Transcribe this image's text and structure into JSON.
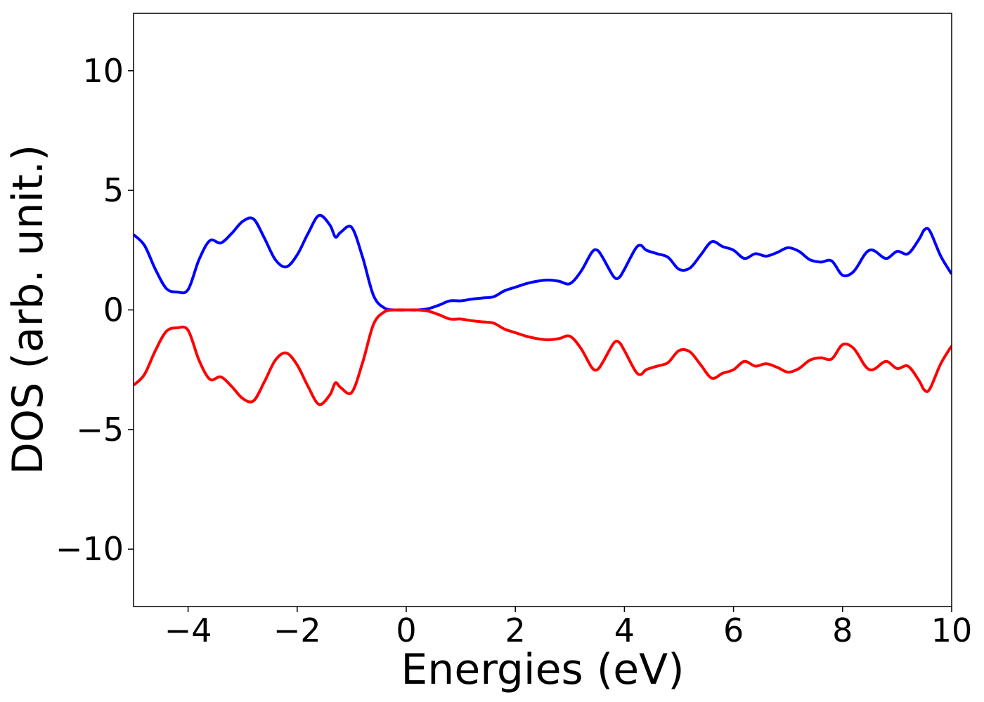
{
  "chart_data": {
    "type": "line",
    "xlabel": "Energies (eV)",
    "ylabel": "DOS (arb. unit.)",
    "xlim": [
      -5,
      10
    ],
    "ylim": [
      -12.4,
      12.4
    ],
    "xticks": [
      -4,
      -2,
      0,
      2,
      4,
      6,
      8,
      10
    ],
    "xtick_labels": [
      "−4",
      "−2",
      "0",
      "2",
      "4",
      "6",
      "8",
      "10"
    ],
    "yticks": [
      -10,
      -5,
      0,
      5,
      10
    ],
    "ytick_labels": [
      "−10",
      "−5",
      "0",
      "5",
      "10"
    ],
    "grid": false,
    "legend": "none",
    "series": [
      {
        "color": "#0000ff",
        "x": [
          -5.0,
          -4.8,
          -4.6,
          -4.4,
          -4.2,
          -4.0,
          -3.8,
          -3.6,
          -3.4,
          -3.2,
          -3.0,
          -2.8,
          -2.6,
          -2.4,
          -2.2,
          -2.0,
          -1.8,
          -1.6,
          -1.4,
          -1.3,
          -1.2,
          -1.0,
          -0.8,
          -0.6,
          -0.4,
          -0.2,
          0.0,
          0.2,
          0.4,
          0.6,
          0.8,
          1.0,
          1.2,
          1.4,
          1.6,
          1.8,
          2.0,
          2.2,
          2.4,
          2.6,
          2.8,
          3.0,
          3.2,
          3.4,
          3.5,
          3.6,
          3.8,
          3.9,
          4.0,
          4.2,
          4.3,
          4.4,
          4.6,
          4.8,
          5.0,
          5.2,
          5.4,
          5.6,
          5.8,
          6.0,
          6.2,
          6.4,
          6.6,
          6.8,
          7.0,
          7.2,
          7.4,
          7.6,
          7.8,
          8.0,
          8.2,
          8.4,
          8.5,
          8.6,
          8.8,
          9.0,
          9.2,
          9.4,
          9.5,
          9.6,
          9.8,
          10.0
        ],
        "y": [
          3.15,
          2.7,
          1.7,
          0.9,
          0.75,
          0.85,
          2.1,
          2.9,
          2.8,
          3.2,
          3.7,
          3.8,
          3.0,
          2.1,
          1.8,
          2.3,
          3.2,
          3.95,
          3.55,
          3.05,
          3.25,
          3.45,
          2.2,
          0.6,
          0.08,
          0.0,
          0.0,
          0.0,
          0.05,
          0.2,
          0.38,
          0.38,
          0.45,
          0.5,
          0.55,
          0.8,
          0.95,
          1.1,
          1.2,
          1.25,
          1.2,
          1.1,
          1.6,
          2.4,
          2.5,
          2.2,
          1.4,
          1.35,
          1.7,
          2.55,
          2.7,
          2.5,
          2.35,
          2.2,
          1.7,
          1.75,
          2.3,
          2.85,
          2.65,
          2.5,
          2.15,
          2.35,
          2.25,
          2.4,
          2.6,
          2.45,
          2.1,
          2.0,
          2.05,
          1.45,
          1.6,
          2.3,
          2.5,
          2.45,
          2.15,
          2.45,
          2.35,
          2.95,
          3.35,
          3.3,
          2.25,
          1.5
        ]
      },
      {
        "color": "#ff0000",
        "x": [
          -5.0,
          -4.8,
          -4.6,
          -4.4,
          -4.2,
          -4.0,
          -3.8,
          -3.6,
          -3.4,
          -3.2,
          -3.0,
          -2.8,
          -2.6,
          -2.4,
          -2.2,
          -2.0,
          -1.8,
          -1.6,
          -1.4,
          -1.3,
          -1.2,
          -1.0,
          -0.8,
          -0.6,
          -0.4,
          -0.2,
          0.0,
          0.2,
          0.4,
          0.6,
          0.8,
          1.0,
          1.2,
          1.4,
          1.6,
          1.8,
          2.0,
          2.2,
          2.4,
          2.6,
          2.8,
          3.0,
          3.2,
          3.4,
          3.5,
          3.6,
          3.8,
          3.9,
          4.0,
          4.2,
          4.3,
          4.4,
          4.6,
          4.8,
          5.0,
          5.2,
          5.4,
          5.6,
          5.8,
          6.0,
          6.2,
          6.4,
          6.6,
          6.8,
          7.0,
          7.2,
          7.4,
          7.6,
          7.8,
          8.0,
          8.2,
          8.4,
          8.5,
          8.6,
          8.8,
          9.0,
          9.2,
          9.4,
          9.5,
          9.6,
          9.8,
          10.0
        ],
        "y": [
          -3.15,
          -2.7,
          -1.7,
          -0.9,
          -0.75,
          -0.85,
          -2.1,
          -2.9,
          -2.8,
          -3.2,
          -3.7,
          -3.8,
          -3.0,
          -2.1,
          -1.8,
          -2.3,
          -3.2,
          -3.95,
          -3.55,
          -3.05,
          -3.25,
          -3.45,
          -2.2,
          -0.6,
          -0.08,
          0.0,
          0.0,
          0.0,
          -0.05,
          -0.2,
          -0.38,
          -0.38,
          -0.45,
          -0.5,
          -0.55,
          -0.8,
          -0.95,
          -1.1,
          -1.2,
          -1.25,
          -1.2,
          -1.1,
          -1.6,
          -2.4,
          -2.5,
          -2.2,
          -1.4,
          -1.35,
          -1.7,
          -2.55,
          -2.7,
          -2.5,
          -2.35,
          -2.2,
          -1.7,
          -1.75,
          -2.3,
          -2.85,
          -2.65,
          -2.5,
          -2.15,
          -2.35,
          -2.25,
          -2.4,
          -2.6,
          -2.45,
          -2.1,
          -2.0,
          -2.05,
          -1.45,
          -1.6,
          -2.3,
          -2.5,
          -2.45,
          -2.15,
          -2.45,
          -2.35,
          -2.95,
          -3.35,
          -3.3,
          -2.25,
          -1.5
        ]
      }
    ]
  }
}
